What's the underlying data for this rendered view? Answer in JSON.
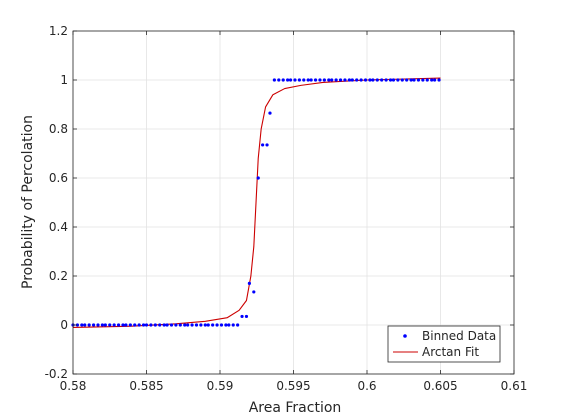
{
  "chart_data": {
    "type": "scatter",
    "xlabel": "Area Fraction",
    "ylabel": "Probability of Percolation",
    "xlim": [
      0.58,
      0.61
    ],
    "ylim": [
      -0.2,
      1.2
    ],
    "xticks": [
      "0.58",
      "0.585",
      "0.59",
      "0.595",
      "0.6",
      "0.605",
      "0.61"
    ],
    "yticks": [
      "-0.2",
      "0",
      "0.2",
      "0.4",
      "0.6",
      "0.8",
      "1",
      "1.2"
    ],
    "grid": true,
    "legend_position": "bottom-right",
    "series": [
      {
        "name": "Binned Data",
        "style": "markers",
        "color": "#0000ff",
        "x": [
          0.58,
          0.5803,
          0.5806,
          0.5808,
          0.5811,
          0.5814,
          0.5817,
          0.582,
          0.5822,
          0.5825,
          0.5828,
          0.5831,
          0.5834,
          0.5836,
          0.5839,
          0.5842,
          0.5845,
          0.5848,
          0.585,
          0.5853,
          0.5856,
          0.5859,
          0.5862,
          0.5864,
          0.5867,
          0.587,
          0.5873,
          0.5876,
          0.5878,
          0.5881,
          0.5884,
          0.5887,
          0.589,
          0.5892,
          0.5895,
          0.5898,
          0.5901,
          0.5904,
          0.5906,
          0.5909,
          0.5912,
          0.5915,
          0.5918,
          0.592,
          0.5923,
          0.5926,
          0.5929,
          0.5932,
          0.5934,
          0.5937,
          0.594,
          0.5943,
          0.5946,
          0.5948,
          0.5951,
          0.5954,
          0.5957,
          0.596,
          0.5962,
          0.5965,
          0.5968,
          0.5971,
          0.5974,
          0.5976,
          0.5979,
          0.5982,
          0.5985,
          0.5988,
          0.599,
          0.5993,
          0.5996,
          0.5999,
          0.6002,
          0.6004,
          0.6007,
          0.601,
          0.6013,
          0.6016,
          0.6018,
          0.6021,
          0.6024,
          0.6027,
          0.603,
          0.6032,
          0.6035,
          0.6038,
          0.6041,
          0.6044,
          0.6046,
          0.6049
        ],
        "y": [
          0,
          0,
          0,
          0,
          0,
          0,
          0,
          0,
          0,
          0,
          0,
          0,
          0,
          0,
          0,
          0,
          0,
          0,
          0,
          0,
          0,
          0,
          0,
          0,
          0,
          0,
          0,
          0,
          0,
          0,
          0,
          0,
          0,
          0,
          0,
          0,
          0,
          0,
          0,
          0,
          0,
          0.035,
          0.035,
          0.17,
          0.135,
          0.6,
          0.735,
          0.735,
          0.865,
          1,
          1,
          1,
          1,
          1,
          1,
          1,
          1,
          1,
          1,
          1,
          1,
          1,
          1,
          1,
          1,
          1,
          1,
          1,
          1,
          1,
          1,
          1,
          1,
          1,
          1,
          1,
          1,
          1,
          1,
          1,
          1,
          1,
          1,
          1,
          1,
          1,
          1,
          1,
          1,
          1
        ]
      },
      {
        "name": "Arctan Fit",
        "style": "line",
        "color": "#cc0000",
        "x": [
          0.58,
          0.584,
          0.587,
          0.589,
          0.5905,
          0.5913,
          0.5918,
          0.5921,
          0.5923,
          0.59245,
          0.5926,
          0.5928,
          0.5931,
          0.5936,
          0.5944,
          0.5955,
          0.597,
          0.6,
          0.605
        ],
        "y": [
          -0.01,
          -0.005,
          0.005,
          0.015,
          0.03,
          0.06,
          0.1,
          0.2,
          0.32,
          0.5,
          0.68,
          0.8,
          0.89,
          0.94,
          0.965,
          0.978,
          0.99,
          1.0,
          1.008
        ]
      }
    ]
  }
}
